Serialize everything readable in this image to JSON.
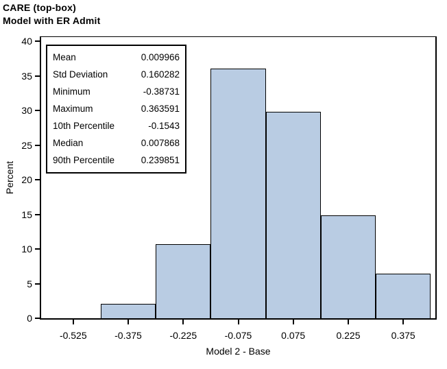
{
  "title": {
    "line1": "CARE (top-box)",
    "line2": "Model with ER Admit"
  },
  "stats_box": {
    "rows": [
      {
        "label": "Mean",
        "value": "0.009966"
      },
      {
        "label": "Std Deviation",
        "value": "0.160282"
      },
      {
        "label": "Minimum",
        "value": "-0.38731"
      },
      {
        "label": "Maximum",
        "value": "0.363591"
      },
      {
        "label": "10th Percentile",
        "value": "-0.1543"
      },
      {
        "label": "Median",
        "value": "0.007868"
      },
      {
        "label": "90th Percentile",
        "value": "0.239851"
      }
    ]
  },
  "chart_data": {
    "type": "bar",
    "subtype": "histogram",
    "title": "CARE (top-box) / Model with ER Admit",
    "xlabel": "Model 2 - Base",
    "ylabel": "Percent",
    "bin_centers": [
      -0.375,
      -0.225,
      -0.075,
      0.075,
      0.225,
      0.375
    ],
    "bin_width": 0.15,
    "values": [
      2.1,
      10.7,
      36.1,
      29.8,
      14.9,
      6.4
    ],
    "x_tick_labels": [
      "-0.525",
      "-0.375",
      "-0.225",
      "-0.075",
      "0.075",
      "0.225",
      "0.375"
    ],
    "x_tick_values": [
      -0.525,
      -0.375,
      -0.225,
      -0.075,
      0.075,
      0.225,
      0.375
    ],
    "y_ticks": [
      0,
      5,
      10,
      15,
      20,
      25,
      30,
      35,
      40
    ],
    "xlim": [
      -0.6125,
      0.4625
    ],
    "ylim": [
      0,
      40
    ],
    "grid": false,
    "legend": false,
    "bar_fill_color": "#b9cce3",
    "bar_border_color": "#000000",
    "axis_color": "#000000",
    "statistics": {
      "mean": 0.009966,
      "std_deviation": 0.160282,
      "minimum": -0.38731,
      "maximum": 0.363591,
      "percentile_10": -0.1543,
      "median": 0.007868,
      "percentile_90": 0.239851
    }
  }
}
